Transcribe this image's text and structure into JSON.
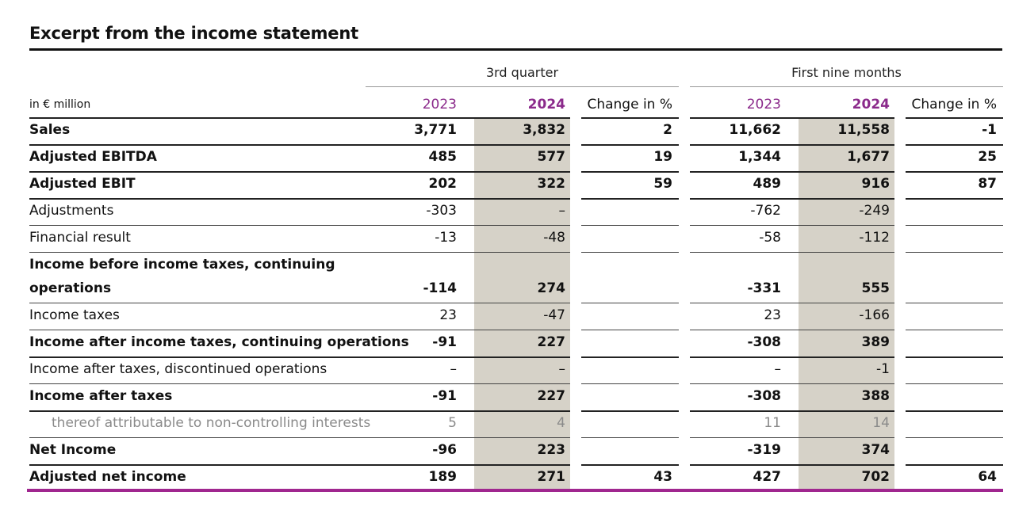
{
  "title": "Excerpt from the income statement",
  "groups": {
    "quarter": "3rd quarter",
    "nine_months": "First nine months"
  },
  "header": {
    "unit": "in € million",
    "q_2023": "2023",
    "q_2024": "2024",
    "q_change": "Change in %",
    "n_2023": "2023",
    "n_2024": "2024",
    "n_change": "Change in %"
  },
  "rows": [
    {
      "label": "Sales",
      "q23": "3,771",
      "q24": "3,832",
      "qc": "2",
      "n23": "11,662",
      "n24": "11,558",
      "nc": "-1"
    },
    {
      "label": "Adjusted EBITDA",
      "q23": "485",
      "q24": "577",
      "qc": "19",
      "n23": "1,344",
      "n24": "1,677",
      "nc": "25"
    },
    {
      "label": "Adjusted EBIT",
      "q23": "202",
      "q24": "322",
      "qc": "59",
      "n23": "489",
      "n24": "916",
      "nc": "87"
    },
    {
      "label": "Adjustments",
      "q23": "-303",
      "q24": "–",
      "qc": "",
      "n23": "-762",
      "n24": "-249",
      "nc": ""
    },
    {
      "label": "Financial result",
      "q23": "-13",
      "q24": "-48",
      "qc": "",
      "n23": "-58",
      "n24": "-112",
      "nc": ""
    },
    {
      "label_line1": "Income before income taxes, continuing",
      "label_line2": "operations",
      "q23": "-114",
      "q24": "274",
      "qc": "",
      "n23": "-331",
      "n24": "555",
      "nc": ""
    },
    {
      "label": "Income taxes",
      "q23": "23",
      "q24": "-47",
      "qc": "",
      "n23": "23",
      "n24": "-166",
      "nc": ""
    },
    {
      "label": "Income after income taxes, continuing operations",
      "q23": "-91",
      "q24": "227",
      "qc": "",
      "n23": "-308",
      "n24": "389",
      "nc": ""
    },
    {
      "label": "Income after taxes, discontinued operations",
      "q23": "–",
      "q24": "–",
      "qc": "",
      "n23": "–",
      "n24": "-1",
      "nc": ""
    },
    {
      "label": "Income after taxes",
      "q23": "-91",
      "q24": "227",
      "qc": "",
      "n23": "-308",
      "n24": "388",
      "nc": ""
    },
    {
      "label": "thereof attributable to non-controlling interests",
      "q23": "5",
      "q24": "4",
      "qc": "",
      "n23": "11",
      "n24": "14",
      "nc": ""
    },
    {
      "label": "Net Income",
      "q23": "-96",
      "q24": "223",
      "qc": "",
      "n23": "-319",
      "n24": "374",
      "nc": ""
    },
    {
      "label": "Adjusted net income",
      "q23": "189",
      "q24": "271",
      "qc": "43",
      "n23": "427",
      "n24": "702",
      "nc": "64"
    }
  ],
  "colors": {
    "accent": "#a0268f",
    "year_label": "#8b2a8b",
    "shade": "#d6d2c8"
  }
}
